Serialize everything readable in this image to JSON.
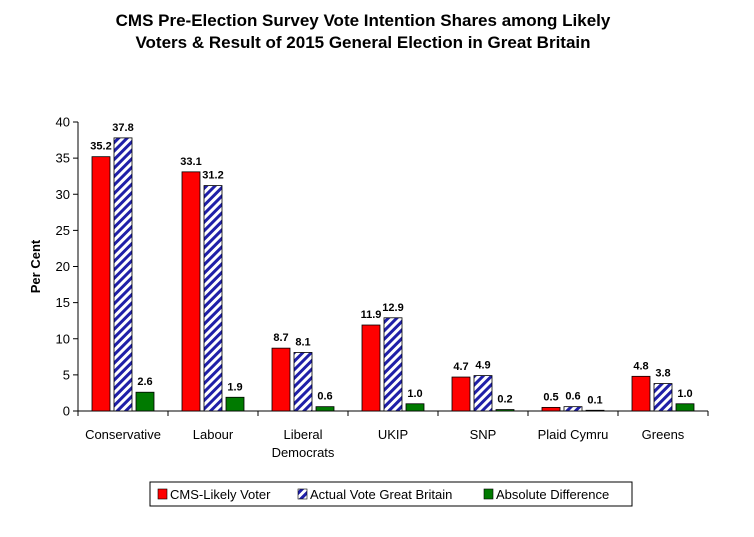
{
  "chart_data": {
    "type": "bar",
    "title": [
      "CMS Pre-Election Survey Vote Intention Shares among Likely",
      "Voters & Result of  2015 General Election in Great Britain"
    ],
    "ylabel": "Per Cent",
    "xlabel": "",
    "ylim": [
      0,
      40
    ],
    "yticks": [
      0,
      5,
      10,
      15,
      20,
      25,
      30,
      35,
      40
    ],
    "categories": [
      [
        "Conservative"
      ],
      [
        "Labour"
      ],
      [
        "Liberal",
        "Democrats"
      ],
      [
        "UKIP"
      ],
      [
        "SNP"
      ],
      [
        "Plaid Cymru"
      ],
      [
        "Greens"
      ]
    ],
    "series": [
      {
        "name": "CMS-Likely Voter",
        "color": "#ff0000",
        "pattern": "solid",
        "values": [
          35.2,
          33.1,
          8.7,
          11.9,
          4.7,
          0.5,
          4.8
        ],
        "labels": [
          "35.2",
          "33.1",
          "8.7",
          "11.9",
          "4.7",
          "0.5",
          "4.8"
        ]
      },
      {
        "name": "Actual Vote Great Britain",
        "color": "#1f1fa8",
        "pattern": "diagonal-stripes",
        "values": [
          37.8,
          31.2,
          8.1,
          12.9,
          4.9,
          0.6,
          3.8
        ],
        "labels": [
          "37.8",
          "31.2",
          "8.1",
          "12.9",
          "4.9",
          "0.6",
          "3.8"
        ]
      },
      {
        "name": "Absolute Difference",
        "color": "#007a00",
        "pattern": "solid",
        "values": [
          2.6,
          1.9,
          0.6,
          1.0,
          0.2,
          0.1,
          1.0
        ],
        "labels": [
          "2.6",
          "1.9",
          "0.6",
          "1.0",
          "0.2",
          "0.1",
          "1.0"
        ]
      }
    ],
    "grid": false,
    "legend_position": "bottom"
  }
}
